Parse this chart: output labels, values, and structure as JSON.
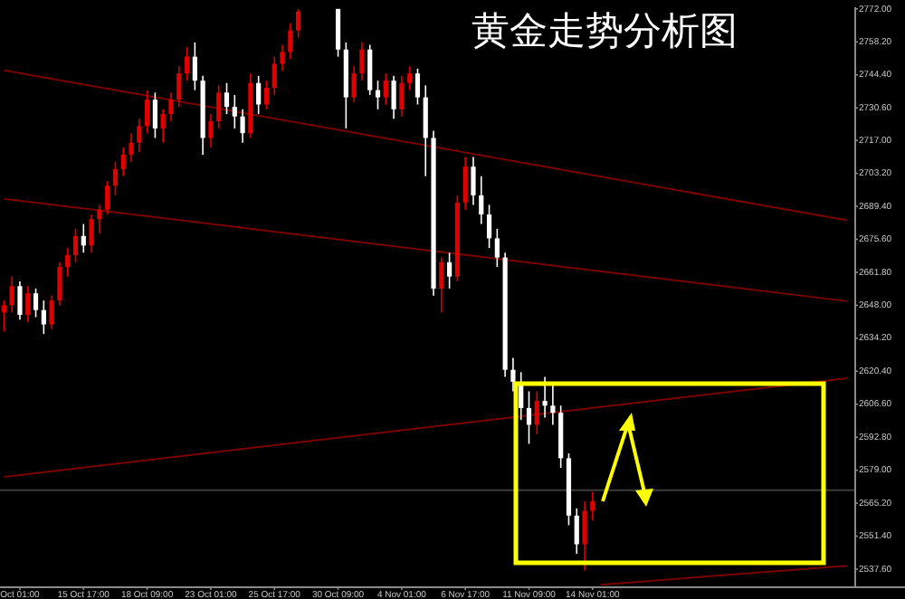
{
  "chart_data": {
    "type": "candlestick",
    "title": "黄金走势分析图",
    "categories": [
      null,
      null,
      "Oct 01:00",
      null,
      null,
      null,
      null,
      null,
      null,
      null,
      "15 Oct 17:00",
      null,
      null,
      null,
      null,
      null,
      null,
      null,
      "18 Oct 09:00",
      null,
      null,
      null,
      null,
      null,
      null,
      null,
      "23 Oct 01:00",
      null,
      null,
      null,
      null,
      null,
      null,
      null,
      "25 Oct 17:00",
      null,
      null,
      null,
      null,
      null,
      null,
      null,
      "30 Oct 09:00",
      null,
      null,
      null,
      null,
      null,
      null,
      null,
      "4 Nov 01:00",
      null,
      null,
      null,
      null,
      null,
      null,
      null,
      "6 Nov 17:00",
      null,
      null,
      null,
      null,
      null,
      null,
      null,
      "11 Nov 09:00",
      null,
      null,
      null,
      null,
      null,
      null,
      null,
      "14 Nov 01:00",
      null,
      null,
      null,
      null,
      null,
      null,
      null,
      null,
      null,
      null,
      null,
      null,
      null,
      null,
      null,
      null,
      null,
      null,
      null,
      null,
      null,
      null,
      null,
      null,
      null,
      null,
      null,
      null,
      null,
      null,
      null,
      null
    ],
    "ohlc": [
      [
        2645,
        2650,
        2637,
        2648
      ],
      [
        2648,
        2660,
        2645,
        2656
      ],
      [
        2656,
        2658,
        2642,
        2644
      ],
      [
        2644,
        2656,
        2641,
        2653
      ],
      [
        2653,
        2655,
        2643,
        2646
      ],
      [
        2646,
        2650,
        2636,
        2640
      ],
      [
        2640,
        2652,
        2638,
        2650
      ],
      [
        2650,
        2666,
        2648,
        2664
      ],
      [
        2664,
        2672,
        2660,
        2669
      ],
      [
        2669,
        2680,
        2666,
        2677
      ],
      [
        2677,
        2682,
        2670,
        2673
      ],
      [
        2673,
        2686,
        2670,
        2684
      ],
      [
        2684,
        2690,
        2678,
        2688
      ],
      [
        2688,
        2700,
        2686,
        2698
      ],
      [
        2698,
        2708,
        2694,
        2705
      ],
      [
        2705,
        2714,
        2702,
        2711
      ],
      [
        2711,
        2720,
        2708,
        2716
      ],
      [
        2716,
        2726,
        2712,
        2723
      ],
      [
        2723,
        2738,
        2720,
        2734
      ],
      [
        2734,
        2737,
        2718,
        2722
      ],
      [
        2722,
        2730,
        2716,
        2728
      ],
      [
        2728,
        2737,
        2725,
        2734
      ],
      [
        2734,
        2748,
        2731,
        2745
      ],
      [
        2745,
        2756,
        2742,
        2752
      ],
      [
        2752,
        2758,
        2738,
        2742
      ],
      [
        2742,
        2744,
        2711,
        2718
      ],
      [
        2718,
        2728,
        2714,
        2725
      ],
      [
        2725,
        2740,
        2722,
        2737
      ],
      [
        2737,
        2741,
        2728,
        2731
      ],
      [
        2731,
        2736,
        2722,
        2727
      ],
      [
        2727,
        2730,
        2716,
        2720
      ],
      [
        2720,
        2745,
        2718,
        2741
      ],
      [
        2741,
        2744,
        2728,
        2732
      ],
      [
        2732,
        2742,
        2730,
        2739
      ],
      [
        2739,
        2752,
        2736,
        2749
      ],
      [
        2749,
        2757,
        2746,
        2754
      ],
      [
        2754,
        2766,
        2751,
        2763
      ],
      [
        2763,
        2772,
        2760,
        2771
      ],
      null,
      null,
      null,
      null,
      [
        2772,
        2772,
        2752,
        2755
      ],
      [
        2755,
        2758,
        2722,
        2735
      ],
      [
        2735,
        2748,
        2733,
        2745
      ],
      [
        2745,
        2758,
        2742,
        2755
      ],
      [
        2755,
        2757,
        2736,
        2738
      ],
      [
        2738,
        2742,
        2730,
        2735
      ],
      [
        2735,
        2745,
        2732,
        2742
      ],
      [
        2742,
        2744,
        2726,
        2730
      ],
      [
        2730,
        2744,
        2727,
        2741
      ],
      [
        2741,
        2748,
        2738,
        2745
      ],
      [
        2745,
        2747,
        2732,
        2735
      ],
      [
        2735,
        2740,
        2702,
        2718
      ],
      [
        2718,
        2721,
        2652,
        2655
      ],
      [
        2655,
        2668,
        2645,
        2666
      ],
      [
        2666,
        2670,
        2655,
        2660
      ],
      [
        2660,
        2694,
        2658,
        2691
      ],
      [
        2691,
        2710,
        2688,
        2706
      ],
      [
        2706,
        2710,
        2690,
        2694
      ],
      [
        2694,
        2702,
        2682,
        2686
      ],
      [
        2686,
        2690,
        2672,
        2676
      ],
      [
        2676,
        2680,
        2664,
        2668
      ],
      [
        2668,
        2670,
        2618,
        2621
      ],
      [
        2621,
        2626,
        2612,
        2616
      ],
      [
        2616,
        2620,
        2600,
        2605
      ],
      [
        2605,
        2612,
        2590,
        2598
      ],
      [
        2598,
        2612,
        2594,
        2608
      ],
      [
        2608,
        2618,
        2601,
        2606
      ],
      [
        2606,
        2616,
        2598,
        2603
      ],
      [
        2603,
        2606,
        2580,
        2584
      ],
      [
        2584,
        2586,
        2556,
        2560
      ],
      [
        2560,
        2563,
        2544,
        2548
      ],
      [
        2548,
        2566,
        2537,
        2562
      ],
      [
        2562,
        2570,
        2558,
        2566
      ],
      null,
      null,
      null,
      null,
      null,
      null,
      null,
      null,
      null,
      null,
      null,
      null,
      null,
      null,
      null,
      null,
      null,
      null,
      null,
      null,
      null,
      null,
      null,
      null,
      null,
      null,
      null,
      null,
      null,
      null,
      null,
      null
    ],
    "colors": [
      "#e00000",
      "#e00000",
      "#ffffff",
      "#e00000",
      "#ffffff",
      "#ffffff",
      "#e00000",
      "#e00000",
      "#e00000",
      "#e00000",
      "#ffffff",
      "#e00000",
      "#e00000",
      "#e00000",
      "#e00000",
      "#e00000",
      "#e00000",
      "#e00000",
      "#e00000",
      "#ffffff",
      "#e00000",
      "#e00000",
      "#e00000",
      "#e00000",
      "#ffffff",
      "#ffffff",
      "#e00000",
      "#e00000",
      "#ffffff",
      "#ffffff",
      "#ffffff",
      "#e00000",
      "#ffffff",
      "#e00000",
      "#e00000",
      "#e00000",
      "#e00000",
      "#e00000",
      null,
      null,
      null,
      null,
      "#ffffff",
      "#ffffff",
      "#e00000",
      "#e00000",
      "#ffffff",
      "#ffffff",
      "#e00000",
      "#ffffff",
      "#e00000",
      "#e00000",
      "#ffffff",
      "#ffffff",
      "#ffffff",
      "#e00000",
      "#ffffff",
      "#e00000",
      "#e00000",
      "#ffffff",
      "#ffffff",
      "#ffffff",
      "#ffffff",
      "#ffffff",
      "#ffffff",
      "#ffffff",
      "#ffffff",
      "#e00000",
      "#ffffff",
      "#ffffff",
      "#ffffff",
      "#ffffff",
      "#ffffff",
      "#e00000",
      "#e00000",
      null,
      null,
      null,
      null,
      null,
      null,
      null,
      null,
      null,
      null,
      null,
      null,
      null,
      null,
      null,
      null,
      null,
      null,
      null,
      null,
      null,
      null,
      null,
      null,
      null,
      null,
      null,
      null,
      null,
      null,
      null,
      null
    ],
    "series": [
      {
        "type": "line",
        "color": "#7a0000",
        "values": [
          2746.3,
          null,
          null,
          null,
          null,
          null,
          null,
          null,
          null,
          null,
          null,
          null,
          null,
          null,
          null,
          null,
          null,
          null,
          null,
          null,
          null,
          null,
          null,
          null,
          null,
          null,
          null,
          null,
          null,
          null,
          null,
          null,
          null,
          null,
          null,
          null,
          null,
          null,
          null,
          null,
          null,
          null,
          null,
          null,
          null,
          null,
          null,
          null,
          null,
          null,
          null,
          null,
          null,
          null,
          null,
          null,
          null,
          null,
          null,
          null,
          null,
          null,
          null,
          null,
          null,
          null,
          null,
          null,
          null,
          null,
          null,
          null,
          null,
          null,
          null,
          null,
          null,
          null,
          null,
          null,
          null,
          null,
          null,
          null,
          null,
          null,
          null,
          null,
          null,
          null,
          null,
          null,
          null,
          null,
          null,
          null,
          null,
          null,
          null,
          null,
          null,
          null,
          null,
          null,
          null,
          null,
          2683.5
        ]
      },
      {
        "type": "line",
        "color": "#7a0000",
        "values": [
          2692.5,
          null,
          null,
          null,
          null,
          null,
          null,
          null,
          null,
          null,
          null,
          null,
          null,
          null,
          null,
          null,
          null,
          null,
          null,
          null,
          null,
          null,
          null,
          null,
          null,
          null,
          null,
          null,
          null,
          null,
          null,
          null,
          null,
          null,
          null,
          null,
          null,
          null,
          null,
          null,
          null,
          null,
          null,
          null,
          null,
          null,
          null,
          null,
          null,
          null,
          null,
          null,
          null,
          null,
          null,
          null,
          null,
          null,
          null,
          null,
          null,
          null,
          null,
          null,
          null,
          null,
          null,
          null,
          null,
          null,
          null,
          null,
          null,
          null,
          null,
          null,
          null,
          null,
          null,
          null,
          null,
          null,
          null,
          null,
          null,
          null,
          null,
          null,
          null,
          null,
          null,
          null,
          null,
          null,
          null,
          null,
          null,
          null,
          null,
          null,
          null,
          null,
          null,
          null,
          null,
          null,
          2649.7
        ]
      },
      {
        "type": "line",
        "color": "#7a0000",
        "values": [
          2576.2,
          null,
          null,
          null,
          null,
          null,
          null,
          null,
          null,
          null,
          null,
          null,
          null,
          null,
          null,
          null,
          null,
          null,
          null,
          null,
          null,
          null,
          null,
          null,
          null,
          null,
          null,
          null,
          null,
          null,
          null,
          null,
          null,
          null,
          null,
          null,
          null,
          null,
          null,
          null,
          null,
          null,
          null,
          null,
          null,
          null,
          null,
          null,
          null,
          null,
          null,
          null,
          null,
          null,
          null,
          null,
          null,
          null,
          null,
          null,
          null,
          null,
          null,
          null,
          null,
          null,
          null,
          null,
          null,
          null,
          null,
          null,
          null,
          null,
          null,
          null,
          null,
          null,
          null,
          null,
          null,
          null,
          null,
          null,
          null,
          null,
          null,
          null,
          null,
          null,
          null,
          null,
          null,
          null,
          null,
          null,
          null,
          null,
          null,
          null,
          null,
          null,
          null,
          null,
          null,
          null,
          2617.5
        ]
      },
      {
        "type": "line",
        "color": "#7a0000",
        "values": [
          null,
          null,
          null,
          null,
          null,
          null,
          null,
          null,
          null,
          null,
          null,
          null,
          null,
          null,
          null,
          null,
          null,
          null,
          null,
          null,
          null,
          null,
          null,
          null,
          null,
          null,
          null,
          null,
          null,
          null,
          null,
          null,
          null,
          null,
          null,
          null,
          null,
          null,
          null,
          null,
          null,
          null,
          null,
          null,
          null,
          null,
          null,
          null,
          null,
          null,
          null,
          null,
          null,
          null,
          null,
          null,
          null,
          null,
          null,
          null,
          null,
          null,
          null,
          null,
          null,
          null,
          null,
          null,
          null,
          null,
          null,
          null,
          null,
          null,
          null,
          2531.1,
          null,
          null,
          null,
          null,
          null,
          null,
          null,
          null,
          null,
          null,
          null,
          null,
          null,
          null,
          null,
          null,
          null,
          null,
          null,
          null,
          null,
          null,
          null,
          null,
          null,
          null,
          null,
          null,
          null,
          null,
          2539
        ]
      }
    ],
    "ylim": [
      2530.4,
      2772.7
    ],
    "yticks": [
      {
        "value": 2772,
        "label": "2772.00"
      },
      {
        "value": 2758.2,
        "label": "2758.20"
      },
      {
        "value": 2744.4,
        "label": "2744.40"
      },
      {
        "value": 2730.6,
        "label": "2730.60"
      },
      {
        "value": 2717,
        "label": "2717.00"
      },
      {
        "value": 2703.2,
        "label": "2703.20"
      },
      {
        "value": 2689.4,
        "label": "2689.40"
      },
      {
        "value": 2675.6,
        "label": "2675.60"
      },
      {
        "value": 2661.8,
        "label": "2661.80"
      },
      {
        "value": 2648,
        "label": "2648.00"
      },
      {
        "value": 2634.2,
        "label": "2634.20"
      },
      {
        "value": 2620.4,
        "label": "2620.40"
      },
      {
        "value": 2606.6,
        "label": "2606.60"
      },
      {
        "value": 2592.8,
        "label": "2592.80"
      },
      {
        "value": 2579,
        "label": "2579.00"
      },
      {
        "value": 2565.2,
        "label": "2565.20"
      },
      {
        "value": 2551.4,
        "label": "2551.40"
      },
      {
        "value": 2537.6,
        "label": "2537.60"
      }
    ],
    "ref_lines": [
      {
        "axis": "y",
        "value": 2570.6,
        "color": "#3c3c3c"
      }
    ]
  }
}
